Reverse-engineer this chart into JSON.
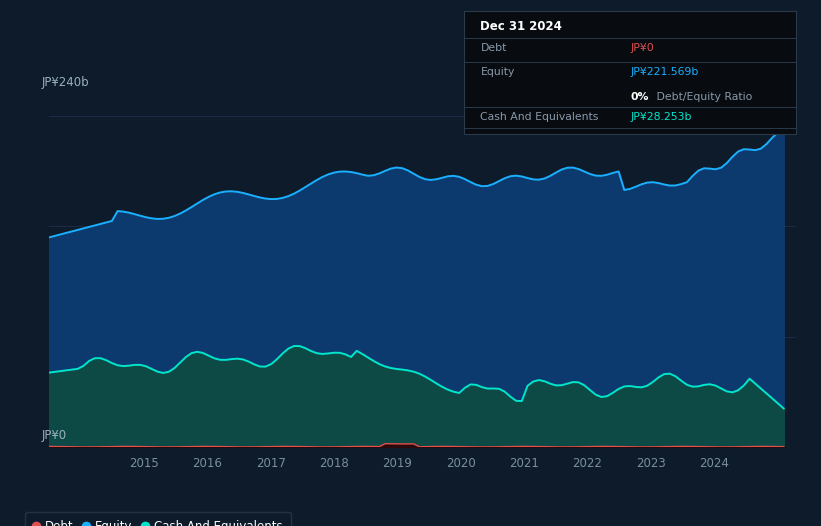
{
  "bg_color": "#0d1b2a",
  "plot_bg_color": "#0d1b2a",
  "grid_color": "#1e3050",
  "ylabel_top": "JP¥240b",
  "ylabel_bottom": "JP¥0",
  "x_ticks": [
    2015,
    2016,
    2017,
    2018,
    2019,
    2020,
    2021,
    2022,
    2023,
    2024
  ],
  "equity_color": "#1ab0ff",
  "equity_fill": "#0d3a6e",
  "cash_color": "#00e5cc",
  "cash_fill": "#0d4a45",
  "debt_color": "#e05050",
  "legend_items": [
    {
      "label": "Debt",
      "color": "#e05050"
    },
    {
      "label": "Equity",
      "color": "#1ab0ff"
    },
    {
      "label": "Cash And Equivalents",
      "color": "#00e5cc"
    }
  ],
  "tooltip_title": "Dec 31 2024",
  "tooltip_debt_label": "Debt",
  "tooltip_debt_value": "JP¥0",
  "tooltip_equity_label": "Equity",
  "tooltip_equity_value": "JP¥221.569b",
  "tooltip_ratio_bold": "0%",
  "tooltip_ratio_rest": " Debt/Equity Ratio",
  "tooltip_cash_label": "Cash And Equivalents",
  "tooltip_cash_value": "JP¥28.253b",
  "y_max": 240,
  "y_min": 0,
  "x_min": 2013.5,
  "x_max": 2025.3
}
